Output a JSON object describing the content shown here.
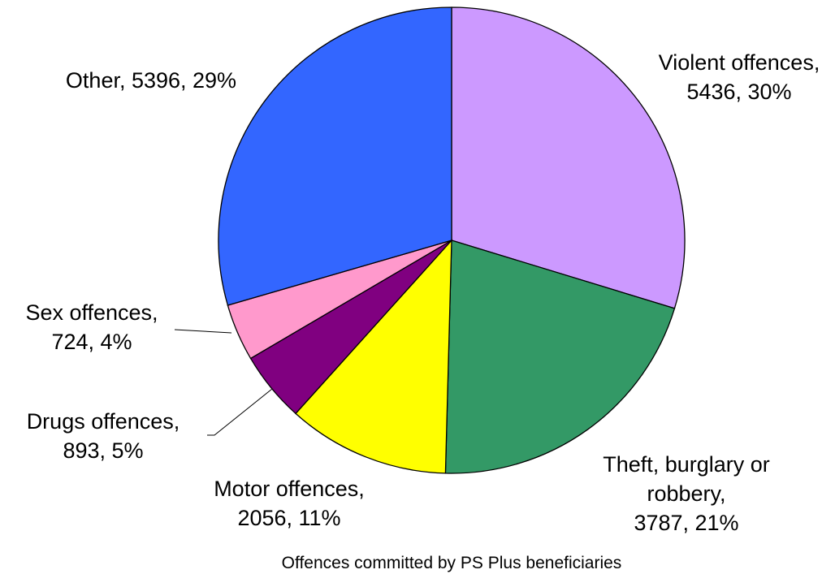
{
  "chart_data": {
    "type": "pie",
    "title": "",
    "caption": "Offences committed by PS Plus beneficiaries",
    "start": "top, clockwise",
    "slices": [
      {
        "name": "Violent offences",
        "value": 5436,
        "percent": "30%",
        "color": "#CC99FF",
        "label_lines": [
          "Violent offences,",
          "5436, 30%"
        ]
      },
      {
        "name": "Theft, burglary or robbery",
        "value": 3787,
        "percent": "21%",
        "color": "#339966",
        "label_lines": [
          "Theft, burglary or",
          "robbery,",
          "3787, 21%"
        ]
      },
      {
        "name": "Motor offences",
        "value": 2056,
        "percent": "11%",
        "color": "#FFFF00",
        "label_lines": [
          "Motor offences,",
          "2056, 11%"
        ]
      },
      {
        "name": "Drugs offences",
        "value": 893,
        "percent": "5%",
        "color": "#800080",
        "label_lines": [
          "Drugs offences,",
          "893, 5%"
        ]
      },
      {
        "name": "Sex offences",
        "value": 724,
        "percent": "4%",
        "color": "#FF99CC",
        "label_lines": [
          "Sex offences,",
          "724, 4%"
        ]
      },
      {
        "name": "Other",
        "value": 5396,
        "percent": "29%",
        "color": "#3366FF",
        "label_lines": [
          "Other, 5396, 29%"
        ]
      }
    ]
  }
}
